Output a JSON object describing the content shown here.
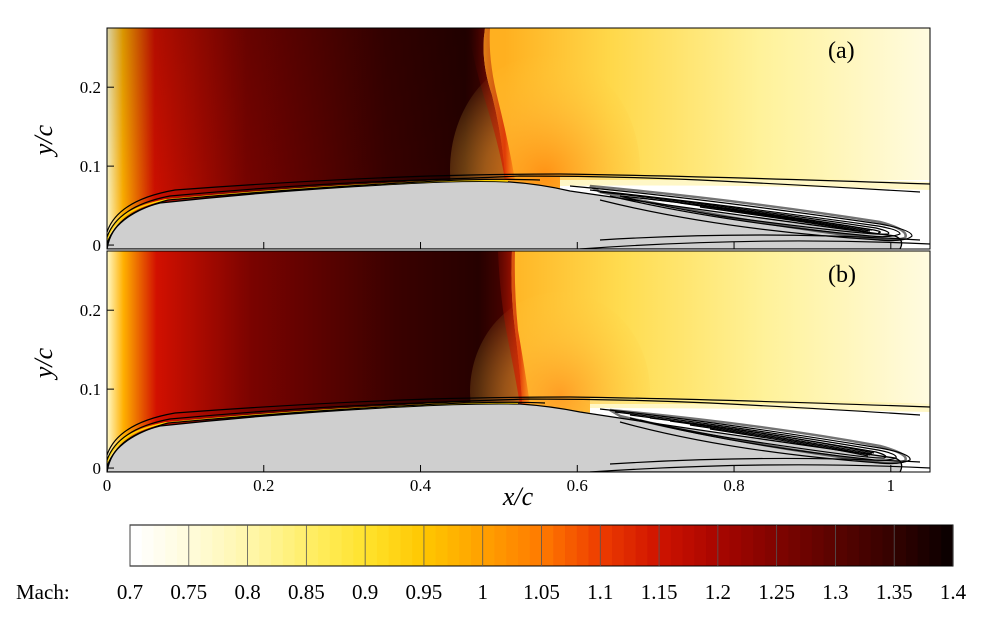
{
  "chart_data": [
    {
      "type": "heatmap",
      "panel_label": "(a)",
      "xlabel": "",
      "ylabel": "y/c",
      "xlim": [
        0,
        1.05
      ],
      "ylim": [
        -0.005,
        0.275
      ],
      "yticks": [
        {
          "value": 0,
          "label": "0"
        },
        {
          "value": 0.1,
          "label": "0.1"
        },
        {
          "value": 0.2,
          "label": "0.2"
        }
      ],
      "xticks": [
        0,
        0.2,
        0.4,
        0.6,
        0.8,
        1.0
      ],
      "shock_x": 0.51,
      "separation_x": 0.57,
      "field": "Mach"
    },
    {
      "type": "heatmap",
      "panel_label": "(b)",
      "xlabel": "x/c",
      "ylabel": "y/c",
      "xlim": [
        0,
        1.05
      ],
      "ylim": [
        -0.005,
        0.275
      ],
      "yticks": [
        {
          "value": 0,
          "label": "0"
        },
        {
          "value": 0.1,
          "label": "0.1"
        },
        {
          "value": 0.2,
          "label": "0.2"
        }
      ],
      "xticks": [
        {
          "value": 0,
          "label": "0"
        },
        {
          "value": 0.2,
          "label": "0.2"
        },
        {
          "value": 0.4,
          "label": "0.4"
        },
        {
          "value": 0.6,
          "label": "0.6"
        },
        {
          "value": 0.8,
          "label": "0.8"
        },
        {
          "value": 1.0,
          "label": "1"
        }
      ],
      "shock_x": 0.53,
      "separation_x": 0.6,
      "field": "Mach"
    }
  ],
  "colorbar": {
    "label": "Mach:",
    "min": 0.7,
    "max": 1.4,
    "ticks": [
      "0.7",
      "0.75",
      "0.8",
      "0.85",
      "0.9",
      "0.95",
      "1",
      "1.05",
      "1.1",
      "1.15",
      "1.2",
      "1.25",
      "1.3",
      "1.35",
      "1.4"
    ],
    "colors": [
      "#ffffff",
      "#fffbd8",
      "#fff6a8",
      "#ffee66",
      "#ffe22a",
      "#ffc600",
      "#ffa000",
      "#ff7a00",
      "#ee3d00",
      "#d01400",
      "#aa0600",
      "#820400",
      "#5c0300",
      "#360200",
      "#0c0000"
    ]
  },
  "surface_color": "#cfcfcf"
}
